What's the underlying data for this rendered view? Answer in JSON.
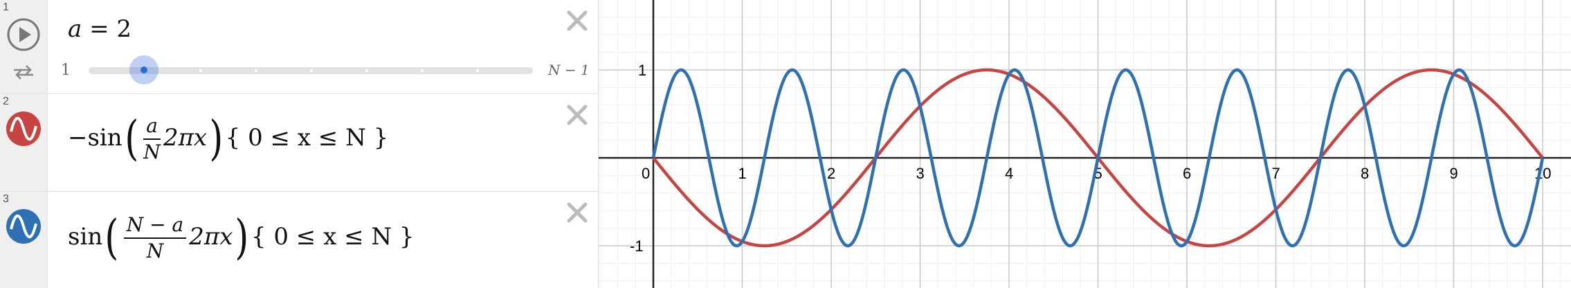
{
  "rows": [
    {
      "number": "1",
      "expr_lhs": "a",
      "expr_eq": " = ",
      "expr_rhs": "2",
      "slider": {
        "min_label": "1",
        "max_label": "N − 1",
        "value": 2,
        "min": 1,
        "max": 9
      }
    },
    {
      "number": "2",
      "prefix": "−sin",
      "frac_num": "a",
      "frac_den": "N",
      "suffix": "2πx",
      "domain": "{ 0 ≤ x ≤ N }",
      "color": "#c74440"
    },
    {
      "number": "3",
      "prefix": "sin",
      "frac_num": "N − a",
      "frac_den": "N",
      "suffix": "2πx",
      "domain": "{ 0 ≤ x ≤ N }",
      "color": "#2d70b3"
    }
  ],
  "chart_data": {
    "type": "line",
    "xlim": [
      0,
      10.3
    ],
    "ylim": [
      -1.45,
      1.75
    ],
    "grid": true,
    "x_ticks": [
      "0",
      "1",
      "2",
      "3",
      "4",
      "5",
      "6",
      "7",
      "8",
      "9",
      "10"
    ],
    "y_ticks": [
      "1",
      "-1"
    ],
    "N": 10,
    "a": 2,
    "series": [
      {
        "formula": "-sin(a/N·2πx)",
        "color": "#c74440",
        "domain": [
          0,
          10
        ]
      },
      {
        "formula": "sin((N-a)/N·2πx)",
        "color": "#2d70b3",
        "domain": [
          0,
          10
        ]
      }
    ]
  }
}
